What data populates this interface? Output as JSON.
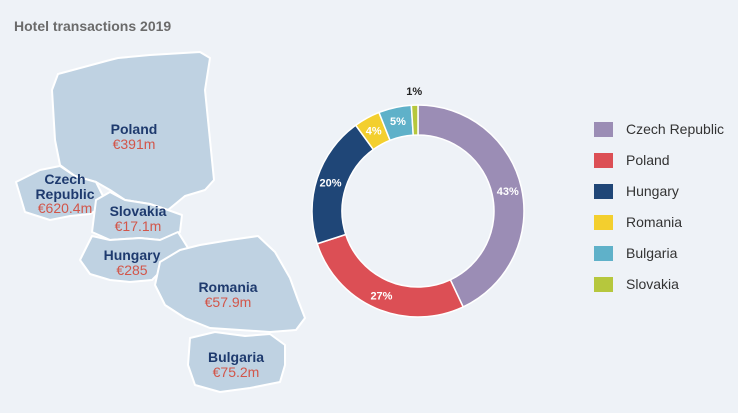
{
  "title": "Hotel transactions 2019",
  "map": {
    "countries": [
      {
        "name": "Poland",
        "value": "€391m"
      },
      {
        "name": "Czech\nRepublic",
        "value": "€620.4m"
      },
      {
        "name": "Slovakia",
        "value": "€17.1m"
      },
      {
        "name": "Hungary",
        "value": "€285"
      },
      {
        "name": "Romania",
        "value": "€57.9m"
      },
      {
        "name": "Bulgaria",
        "value": "€75.2m"
      }
    ]
  },
  "colors": {
    "map_fill": "#bfd2e2",
    "map_stroke": "#ffffff",
    "czech": "#9b8db5",
    "poland": "#dc4f55",
    "hungary": "#1f4677",
    "romania": "#f3cf2e",
    "bulgaria": "#5fb1c9",
    "slovakia": "#b6c73d"
  },
  "chart_data": {
    "type": "pie",
    "title": "Hotel transactions 2019",
    "categories": [
      "Czech Republic",
      "Poland",
      "Hungary",
      "Romania",
      "Bulgaria",
      "Slovakia"
    ],
    "values": [
      43,
      27,
      20,
      4,
      5,
      1
    ],
    "labels": [
      "43%",
      "27%",
      "20%",
      "4%",
      "5%",
      "1%"
    ],
    "legend_position": "right",
    "donut": true
  }
}
